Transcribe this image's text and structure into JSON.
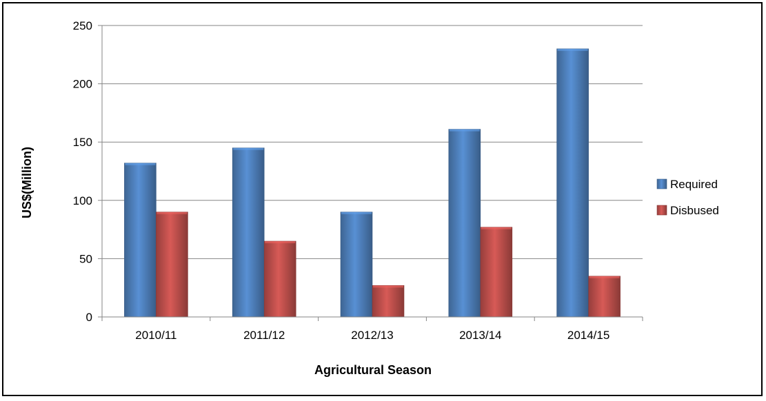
{
  "chart_data": {
    "type": "bar",
    "title": "",
    "xlabel": "Agricultural Season",
    "ylabel": "US$(Million)",
    "categories": [
      "2010/11",
      "2011/12",
      "2012/13",
      "2013/14",
      "2014/15"
    ],
    "series": [
      {
        "name": "Required",
        "values": [
          132,
          145,
          90,
          161,
          230
        ],
        "color": "#4F81BD"
      },
      {
        "name": "Disbused",
        "values": [
          90,
          65,
          27,
          77,
          35
        ],
        "color": "#C0504D"
      }
    ],
    "ylim": [
      0,
      250
    ],
    "yticks": [
      0,
      50,
      100,
      150,
      200,
      250
    ],
    "grid": true,
    "legend_position": "right"
  }
}
